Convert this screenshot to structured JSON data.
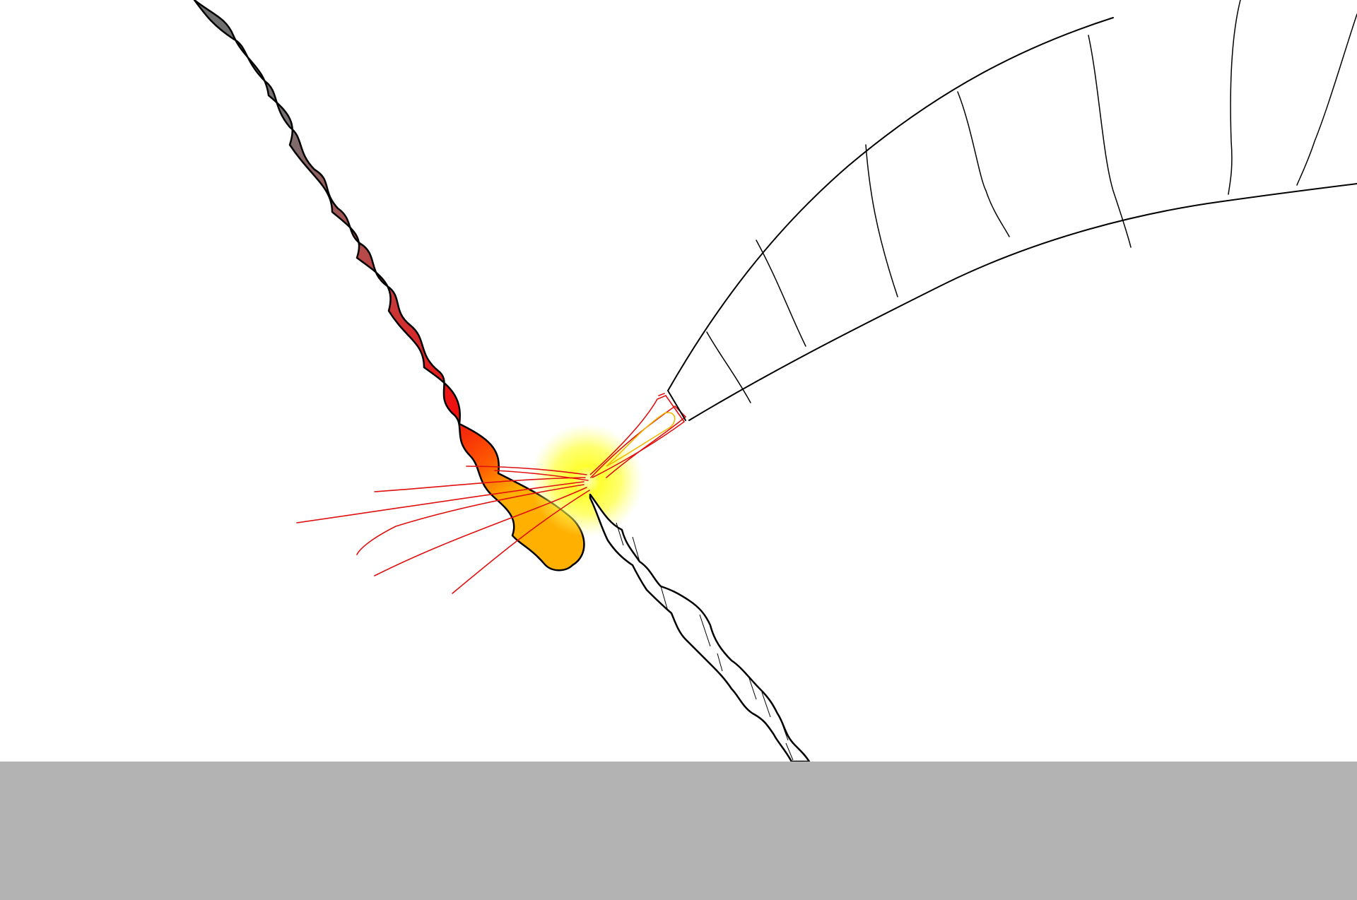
{
  "scene": {
    "background_color": "#ffffff",
    "ground_color": "#b3b3b3",
    "outline_color": "#000000",
    "hot_color": "#f11010",
    "cool_color": "#707070",
    "glow_color": "#ffff00",
    "spark_color": "#e01010",
    "inner_flame_color": "#f0b800"
  },
  "elements": [
    "burning-rope",
    "flash-glow",
    "sparks",
    "frayed-rope",
    "curved-structure",
    "ground"
  ]
}
